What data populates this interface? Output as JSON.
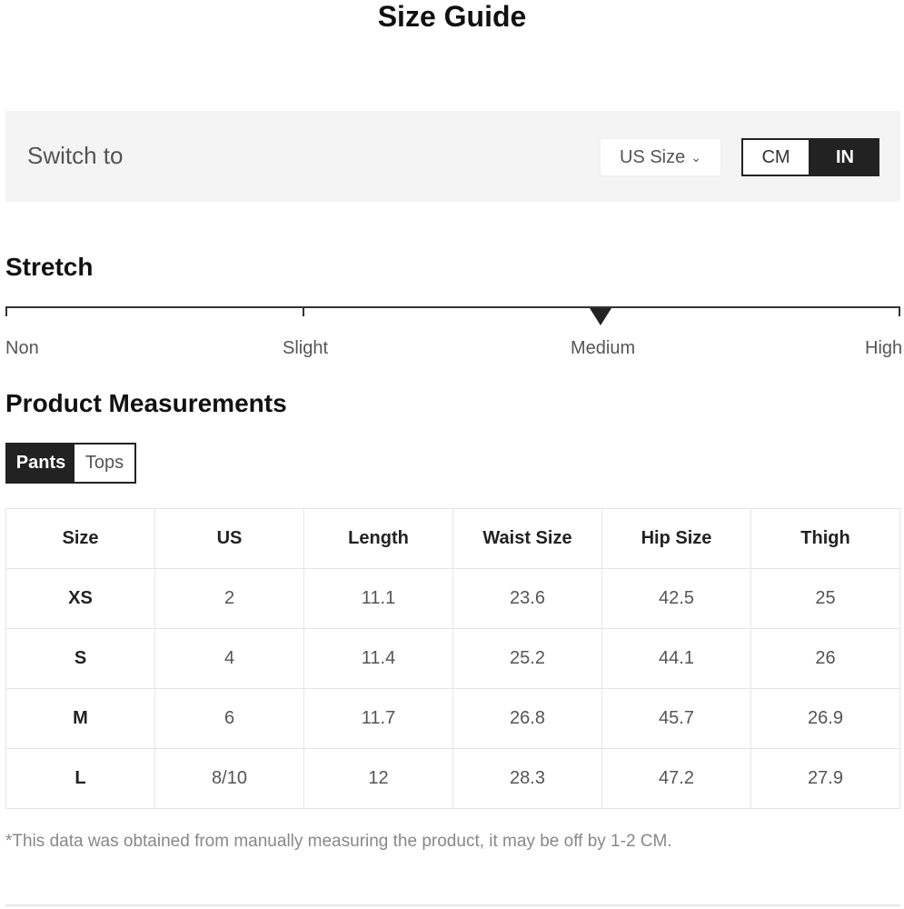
{
  "title": "Size Guide",
  "switch": {
    "label": "Switch to",
    "size_system": "US Size",
    "units": [
      "CM",
      "IN"
    ],
    "selected_unit": "IN"
  },
  "stretch": {
    "heading": "Stretch",
    "levels": [
      "Non",
      "Slight",
      "Medium",
      "High"
    ],
    "selected": "Medium"
  },
  "measurements": {
    "heading": "Product Measurements",
    "tabs": [
      "Pants",
      "Tops"
    ],
    "active_tab": "Pants",
    "columns": [
      "Size",
      "US",
      "Length",
      "Waist Size",
      "Hip Size",
      "Thigh"
    ],
    "rows": [
      [
        "XS",
        "2",
        "11.1",
        "23.6",
        "42.5",
        "25"
      ],
      [
        "S",
        "4",
        "11.4",
        "25.2",
        "44.1",
        "26"
      ],
      [
        "M",
        "6",
        "11.7",
        "26.8",
        "45.7",
        "26.9"
      ],
      [
        "L",
        "8/10",
        "12",
        "28.3",
        "47.2",
        "27.9"
      ]
    ]
  },
  "note": "*This data was obtained from manually measuring the product, it may be off by 1-2 CM."
}
